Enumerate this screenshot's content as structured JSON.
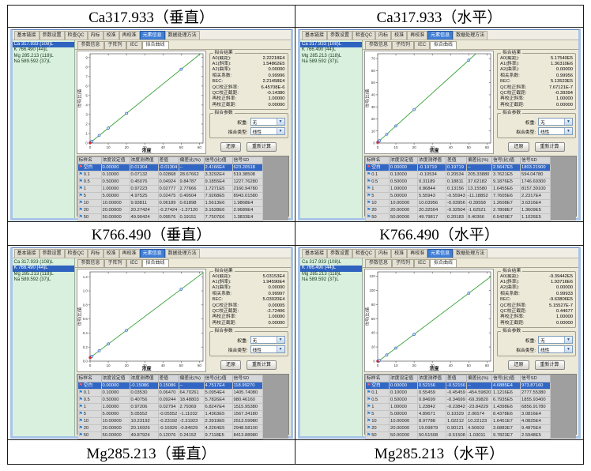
{
  "captions": {
    "row1": [
      "Ca317.933（垂直）",
      "Ca317.933（水平）"
    ],
    "row2": [
      "K766.490（垂直）",
      "K766.490（水平）"
    ],
    "row3": [
      "Mg285.213（垂直）",
      "Mg285.213（水平）"
    ]
  },
  "colors": {
    "selection_blue": "#3166c5",
    "fit_line_green": "#3aa33a",
    "blank_point_red": "#e02424",
    "data_point_blue": "#4070c0",
    "list_panel_mint": "#d9f0df"
  },
  "app": {
    "menu_tabs": [
      "基本链接",
      "参数设置",
      "检查QC",
      "内标",
      "校准",
      "再校准",
      "元素信息",
      "数据处理方法"
    ],
    "menu_selected": "元素信息",
    "element_list": [
      "Ca 317.933 (108)L",
      "K 766.490 (44)L",
      "Mg 285.213 (118)L",
      "Na 589.592 (37)L"
    ],
    "inner_tabs": [
      "参数信息",
      "子阵列",
      "IEC",
      "拟合曲线"
    ],
    "inner_selected": "拟合曲线",
    "fit_group_title": "拟合结果",
    "fit_labels": [
      "A0(截距):",
      "A1(斜率):",
      "A2(曲率):",
      "相关系数:",
      "BEC:",
      "QC校正斜率:",
      "QC校正截距:",
      "再校正斜率:",
      "再校正截距:"
    ],
    "param_group_title": "拟合参数",
    "weight_label": "权重:",
    "weight_value": "无",
    "fit_type_label": "拟合类型:",
    "fit_type_value": "线性",
    "buttons": [
      "还原",
      "重新计算"
    ],
    "flag_glyph": "⚑",
    "dd_arrow": "▼",
    "xlabel": "浓度",
    "ylabel": "信号(比)值",
    "x_ticks": [
      "0",
      "10",
      "20",
      "30",
      "40",
      "50",
      "60"
    ],
    "table_headers": [
      "标样名",
      "浓度设定值",
      "浓度测得值",
      "差值",
      "偏差比(%)",
      "信号(比)值",
      "信号SD"
    ]
  },
  "quadrants": [
    {
      "selected_element": 0,
      "fit_values": [
        "2.22218E4",
        "1.54862E5",
        "0.00000",
        "0.99996",
        "2.21458E4",
        "6.45708E-6",
        "-0.14380",
        "1.00000",
        "0.00000"
      ],
      "y_ticks": [
        "0",
        "1",
        "2",
        "3",
        "4",
        "5",
        "6",
        "7",
        "8",
        "9"
      ],
      "plot": {
        "intercept": 0.022,
        "slope": 0.1549,
        "ymax": 9.4,
        "point_x": [
          0.1,
          0.5,
          1,
          5,
          10,
          20,
          50
        ]
      },
      "table_rows": [
        [
          "空白",
          "0.00000",
          "0.01304",
          "-0.01304",
          "--",
          "2.4166E4",
          "623.20518"
        ],
        [
          "0.1",
          "0.10000",
          "0.07132",
          "0.02868",
          "28.67662",
          "3.3292E4",
          "519.38508"
        ],
        [
          "0.5",
          "0.50000",
          "0.45076",
          "0.04924",
          "9.84787",
          "9.1855E4",
          "1227.76280"
        ],
        [
          "1",
          "1.00000",
          "0.97223",
          "0.02777",
          "2.77666",
          "1.7271E5",
          "2160.94780"
        ],
        [
          "5",
          "5.00000",
          "4.97525",
          "0.02475",
          "0.49504",
          "7.9268E5",
          "8943.01580"
        ],
        [
          "10",
          "10.00000",
          "9.93811",
          "0.06189",
          "0.61898",
          "1.5613E6",
          "1.9868E4"
        ],
        [
          "20",
          "20.00000",
          "20.27424",
          "-0.27424",
          "-1.37120",
          "3.1628E6",
          "2.9689E4"
        ],
        [
          "50",
          "50.00000",
          "49.90424",
          "0.09576",
          "0.19151",
          "7.7507E6",
          "1.3833E4"
        ]
      ]
    },
    {
      "selected_element": 0,
      "fit_values": [
        "5.17540E5",
        "1.36310E6",
        "0.00000",
        "0.99956",
        "5.13523E5",
        "7.67121E-7",
        "-0.39394",
        "1.00000",
        "0.00000"
      ],
      "y_ticks": [
        "0",
        "10",
        "20",
        "30",
        "40",
        "50",
        "60",
        "70"
      ],
      "plot": {
        "intercept": 0.52,
        "slope": 1.363,
        "ymax": 74,
        "point_x": [
          0.1,
          0.5,
          1,
          5,
          10,
          20,
          50
        ]
      },
      "table_rows": [
        [
          "空白",
          "0.00000",
          "-0.19719",
          "0.19719",
          "--",
          "2.5647E5",
          "1803.21900"
        ],
        [
          "0.1",
          "0.10000",
          "-0.10534",
          "0.20534",
          "205.33880",
          "3.7621E5",
          "594.04780"
        ],
        [
          "0.5",
          "0.50000",
          "0.31189",
          "0.18811",
          "37.62182",
          "9.1876E5",
          "1746.69300"
        ],
        [
          "1",
          "1.00000",
          "0.86844",
          "0.13156",
          "13.15580",
          "1.6455E6",
          "8157.39100"
        ],
        [
          "5",
          "5.00000",
          "5.55943",
          "-0.55943",
          "-11.18852",
          "7.7605E6",
          "2.2317E4"
        ],
        [
          "10",
          "10.00000",
          "10.03956",
          "-0.03956",
          "-0.39558",
          "1.2608E7",
          "3.6316E4"
        ],
        [
          "20",
          "20.00000",
          "20.32504",
          "-0.32504",
          "-1.62521",
          "2.7808E7",
          "1.3609E5"
        ],
        [
          "50",
          "50.00000",
          "49.79817",
          "0.20183",
          "0.40366",
          "6.5429E7",
          "1.1026E5"
        ]
      ]
    },
    {
      "selected_element": 1,
      "fit_values": [
        "5.03153E4",
        "1.94590E4",
        "0.00000",
        "0.99997",
        "5.03020E4",
        "0.00005",
        "-2.72406",
        "1.00000",
        "0.00000"
      ],
      "y_ticks": [
        "0.0",
        "0.2",
        "0.4",
        "0.6",
        "0.8",
        "1.0",
        "1.2"
      ],
      "plot": {
        "intercept": 0.05,
        "slope": 0.01946,
        "ymax": 1.27,
        "point_x": [
          0.1,
          0.5,
          1,
          5,
          10,
          20,
          50
        ]
      },
      "table_rows": [
        [
          "空白",
          "0.00000",
          "-0.15086",
          "0.15086",
          "--",
          "4.7517E4",
          "118.99270"
        ],
        [
          "0.1",
          "0.10000",
          "0.03530",
          "0.06470",
          "64.70261",
          "5.0954E4",
          "1405.74080"
        ],
        [
          "0.5",
          "0.50000",
          "0.40756",
          "0.09244",
          "18.48803",
          "5.7826E4",
          "980.46160"
        ],
        [
          "1",
          "1.00000",
          "0.97206",
          "0.02794",
          "2.79369",
          "6.8247E4",
          "1515.95380"
        ],
        [
          "5",
          "5.00000",
          "5.05552",
          "-0.05552",
          "-1.11032",
          "1.4363E5",
          "1567.34180"
        ],
        [
          "10",
          "10.00000",
          "10.23192",
          "-0.23192",
          "-2.31923",
          "2.3919E5",
          "2513.59980"
        ],
        [
          "20",
          "20.00000",
          "20.16926",
          "-0.16926",
          "-0.84629",
          "4.2264E5",
          "2948.58100"
        ],
        [
          "50",
          "50.00000",
          "49.87924",
          "0.12076",
          "0.24152",
          "9.7118E5",
          "8413.88980"
        ]
      ]
    },
    {
      "selected_element": 1,
      "fit_values": [
        "-9.39442E5",
        "1.93716E6",
        "0.00000",
        "0.99933",
        "-9.63806E5",
        "5.15527E-7",
        "0.44677",
        "1.00000",
        "0.00000"
      ],
      "y_ticks": [
        "0",
        "20",
        "40",
        "60",
        "80",
        "100",
        "120"
      ],
      "plot": {
        "intercept": -0.94,
        "slope": 1.937,
        "ymax": 126,
        "point_x": [
          0.1,
          0.5,
          1,
          5,
          10,
          20,
          50
        ]
      },
      "table_rows": [
        [
          "空白",
          "0.00000",
          "0.52156",
          "-0.52156",
          "--",
          "4.6885E4",
          "973.87160"
        ],
        [
          "0.1",
          "0.10000",
          "0.55459",
          "-0.45459",
          "-454.59820",
          "1.1216E6",
          "2777.55380"
        ],
        [
          "0.5",
          "0.50000",
          "0.84699",
          "-0.34699",
          "-69.39820",
          "6.7935E5",
          "1855.93400"
        ],
        [
          "1",
          "1.00000",
          "1.23842",
          "-0.23842",
          "-23.84229",
          "1.4398E6",
          "6856.91780"
        ],
        [
          "5",
          "5.00000",
          "4.89671",
          "0.10329",
          "2.06574",
          "8.4378E6",
          "3.0816E4"
        ],
        [
          "10",
          "10.00000",
          "8.97788",
          "1.02212",
          "10.22123",
          "1.6451E7",
          "4.0825E4"
        ],
        [
          "20",
          "20.00000",
          "19.09879",
          "0.90121",
          "4.50603",
          "3.6883E7",
          "9.4875E4"
        ],
        [
          "50",
          "50.00000",
          "50.51508",
          "-0.51508",
          "-1.03011",
          "9.7823E7",
          "2.5948E5"
        ]
      ]
    }
  ]
}
